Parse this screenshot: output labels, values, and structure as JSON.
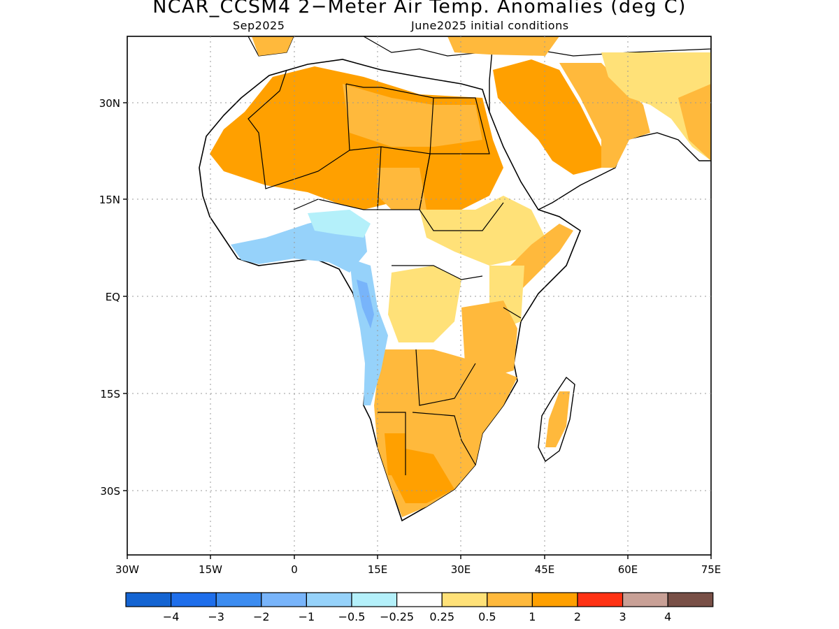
{
  "map": {
    "title": "NCAR_CCSM4 2−Meter Air Temp. Anomalies (deg C)",
    "subtitle_left": "Sep2025",
    "subtitle_right": "June2025 initial conditions",
    "lat_labels": [
      "30N",
      "15N",
      "EQ",
      "15S",
      "30S"
    ],
    "lon_labels": [
      "30W",
      "15W",
      "0",
      "15E",
      "30E",
      "45E",
      "60E",
      "75E"
    ],
    "region": "Africa"
  },
  "legend": {
    "colors": [
      "#1464d2",
      "#1e6eeb",
      "#3c8cf0",
      "#78b4fa",
      "#96d2fa",
      "#b4f0fa",
      "#ffffff",
      "#ffe178",
      "#ffb93c",
      "#ffa000",
      "#ff3214",
      "#c8a096",
      "#784f46"
    ],
    "labels": [
      "−4",
      "−3",
      "−2",
      "−1",
      "−0.5",
      "−0.25",
      "0.25",
      "0.5",
      "1",
      "2",
      "3",
      "4"
    ]
  }
}
